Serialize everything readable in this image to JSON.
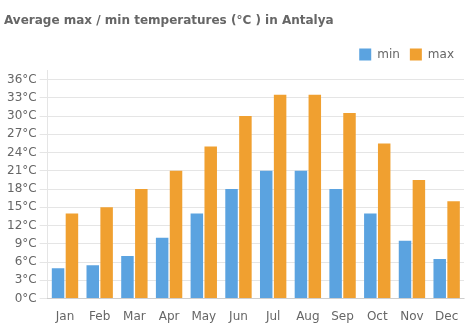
{
  "chart_data": {
    "type": "bar",
    "title": "Average max / min temperatures (°C ) in Antalya",
    "categories": [
      "Jan",
      "Feb",
      "Mar",
      "Apr",
      "May",
      "Jun",
      "Jul",
      "Aug",
      "Sep",
      "Oct",
      "Nov",
      "Dec"
    ],
    "series": [
      {
        "name": "min",
        "color": "#5ba3e0",
        "values": [
          5,
          5.5,
          7,
          10,
          14,
          18,
          21,
          21,
          18,
          14,
          9.5,
          6.5
        ]
      },
      {
        "name": "max",
        "color": "#f0a030",
        "values": [
          14,
          15,
          18,
          21,
          25,
          30,
          33.5,
          33.5,
          30.5,
          25.5,
          19.5,
          16
        ]
      }
    ],
    "ylim": [
      0,
      37.5
    ],
    "yticks": [
      {
        "value": 0,
        "label": "0°C"
      },
      {
        "value": 3,
        "label": "3°C"
      },
      {
        "value": 6,
        "label": "6°C"
      },
      {
        "value": 9,
        "label": "9°C"
      },
      {
        "value": 12,
        "label": "12°C"
      },
      {
        "value": 15,
        "label": "15°C"
      },
      {
        "value": 18,
        "label": "18°C"
      },
      {
        "value": 21,
        "label": "21°C"
      },
      {
        "value": 24,
        "label": "24°C"
      },
      {
        "value": 27,
        "label": "27°C"
      },
      {
        "value": 30,
        "label": "30°C"
      },
      {
        "value": 33,
        "label": "33°C"
      },
      {
        "value": 36,
        "label": "36°C"
      }
    ],
    "grid": true,
    "legend": "upper right"
  }
}
